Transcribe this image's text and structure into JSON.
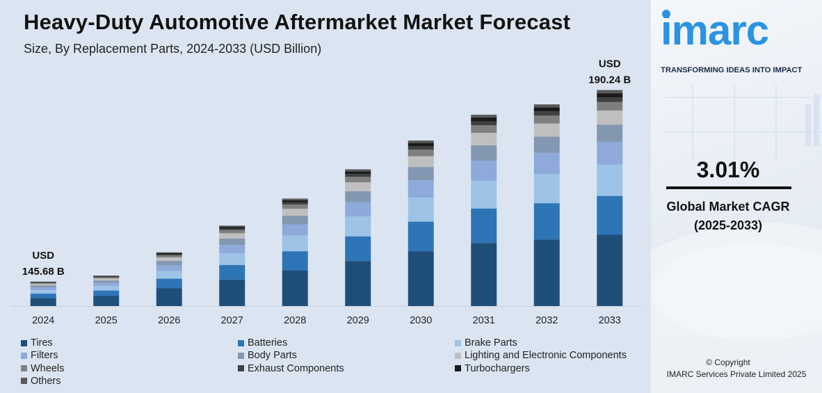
{
  "header": {
    "title": "Heavy-Duty Automotive Aftermarket Market Forecast",
    "subtitle": "Size, By Replacement Parts, 2024-2033 (USD Billion)"
  },
  "brand": {
    "logo_text": "imarc",
    "tagline": "TRANSFORMING IDEAS INTO IMPACT",
    "accent_color": "#2a93e2"
  },
  "cagr": {
    "value": "3.01%",
    "label": "Global Market CAGR",
    "period": "(2025-2033)"
  },
  "copyright": {
    "line1": "© Copyright",
    "line2": "IMARC Services Private Limited 2025"
  },
  "chart_data": {
    "type": "bar",
    "stacked": true,
    "categories": [
      "2024",
      "2025",
      "2026",
      "2027",
      "2028",
      "2029",
      "2030",
      "2031",
      "2032",
      "2033"
    ],
    "totals": [
      145.68,
      147.1,
      152.5,
      158.7,
      165.0,
      171.8,
      178.5,
      184.5,
      186.9,
      190.24
    ],
    "annotations": [
      {
        "category": "2024",
        "line1": "USD",
        "line2": "145.68 B"
      },
      {
        "category": "2033",
        "line1": "USD",
        "line2": "190.24 B"
      }
    ],
    "ylim": [
      140,
      195
    ],
    "grid": false,
    "legend_position": "bottom",
    "series": [
      {
        "name": "Tires",
        "color": "#1f4e79",
        "share": 0.33
      },
      {
        "name": "Batteries",
        "color": "#2e75b6",
        "share": 0.18
      },
      {
        "name": "Brake Parts",
        "color": "#9dc3e6",
        "share": 0.145
      },
      {
        "name": "Filters",
        "color": "#8eaadb",
        "share": 0.105
      },
      {
        "name": "Body Parts",
        "color": "#8497b0",
        "share": 0.08
      },
      {
        "name": "Lighting and Electronic Components",
        "color": "#bfbfbf",
        "share": 0.065
      },
      {
        "name": "Wheels",
        "color": "#7f7f7f",
        "share": 0.04
      },
      {
        "name": "Exhaust Components",
        "color": "#404040",
        "share": 0.02
      },
      {
        "name": "Turbochargers",
        "color": "#1a1a1a",
        "share": 0.02
      },
      {
        "name": "Others",
        "color": "#595959",
        "share": 0.015
      }
    ]
  }
}
